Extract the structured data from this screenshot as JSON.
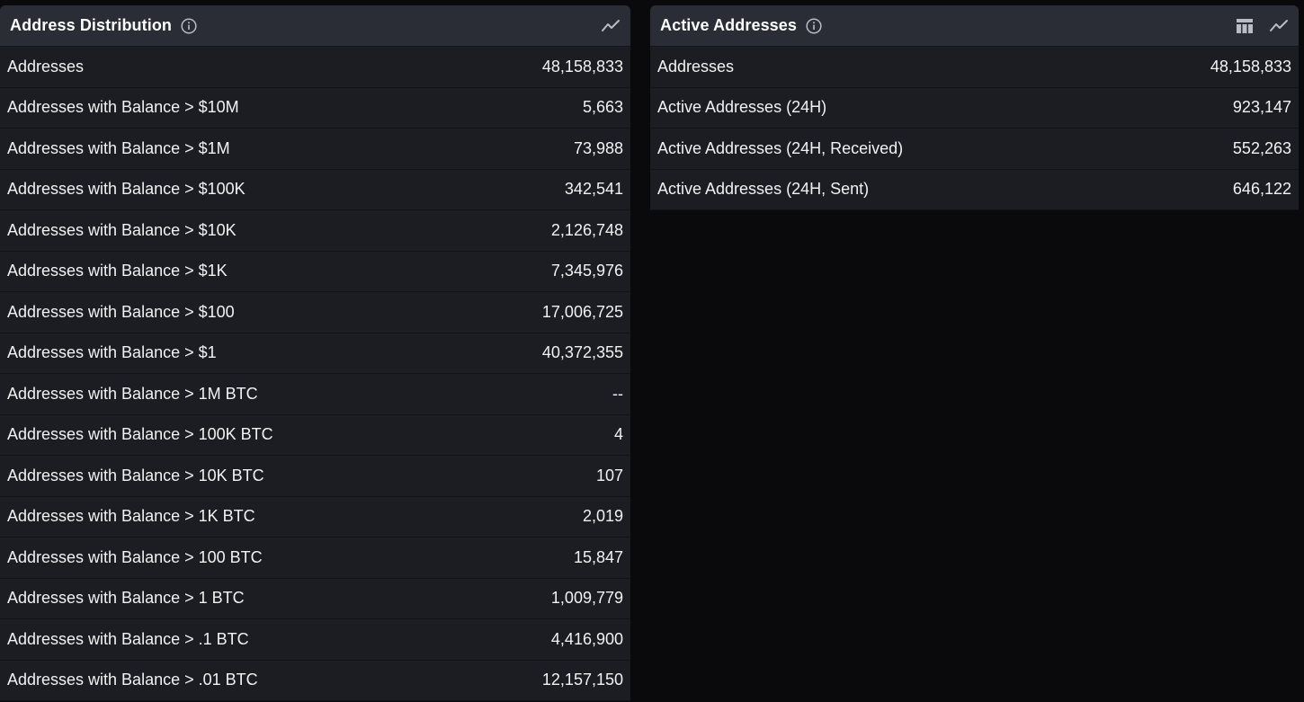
{
  "left_panel": {
    "title": "Address Distribution",
    "icons": [
      "info-icon",
      "line-chart-icon"
    ],
    "rows": [
      {
        "label": "Addresses",
        "value": "48,158,833"
      },
      {
        "label": "Addresses with Balance > $10M",
        "value": "5,663"
      },
      {
        "label": "Addresses with Balance > $1M",
        "value": "73,988"
      },
      {
        "label": "Addresses with Balance > $100K",
        "value": "342,541"
      },
      {
        "label": "Addresses with Balance > $10K",
        "value": "2,126,748"
      },
      {
        "label": "Addresses with Balance > $1K",
        "value": "7,345,976"
      },
      {
        "label": "Addresses with Balance > $100",
        "value": "17,006,725"
      },
      {
        "label": "Addresses with Balance > $1",
        "value": "40,372,355"
      },
      {
        "label": "Addresses with Balance > 1M BTC",
        "value": "--"
      },
      {
        "label": "Addresses with Balance > 100K BTC",
        "value": "4"
      },
      {
        "label": "Addresses with Balance > 10K BTC",
        "value": "107"
      },
      {
        "label": "Addresses with Balance > 1K BTC",
        "value": "2,019"
      },
      {
        "label": "Addresses with Balance > 100 BTC",
        "value": "15,847"
      },
      {
        "label": "Addresses with Balance > 1 BTC",
        "value": "1,009,779"
      },
      {
        "label": "Addresses with Balance > .1 BTC",
        "value": "4,416,900"
      },
      {
        "label": "Addresses with Balance > .01 BTC",
        "value": "12,157,150"
      }
    ]
  },
  "right_panel": {
    "title": "Active Addresses",
    "icons": [
      "info-icon",
      "table-icon",
      "line-chart-icon"
    ],
    "rows": [
      {
        "label": "Addresses",
        "value": "48,158,833"
      },
      {
        "label": "Active Addresses (24H)",
        "value": "923,147"
      },
      {
        "label": "Active Addresses (24H, Received)",
        "value": "552,263"
      },
      {
        "label": "Active Addresses (24H, Sent)",
        "value": "646,122"
      }
    ]
  },
  "colors": {
    "background": "#0a0a0c",
    "panel_header": "#2a2d35",
    "row_background": "#1c1d22",
    "text": "#f2f2f2",
    "icon": "#b9bcc4"
  }
}
